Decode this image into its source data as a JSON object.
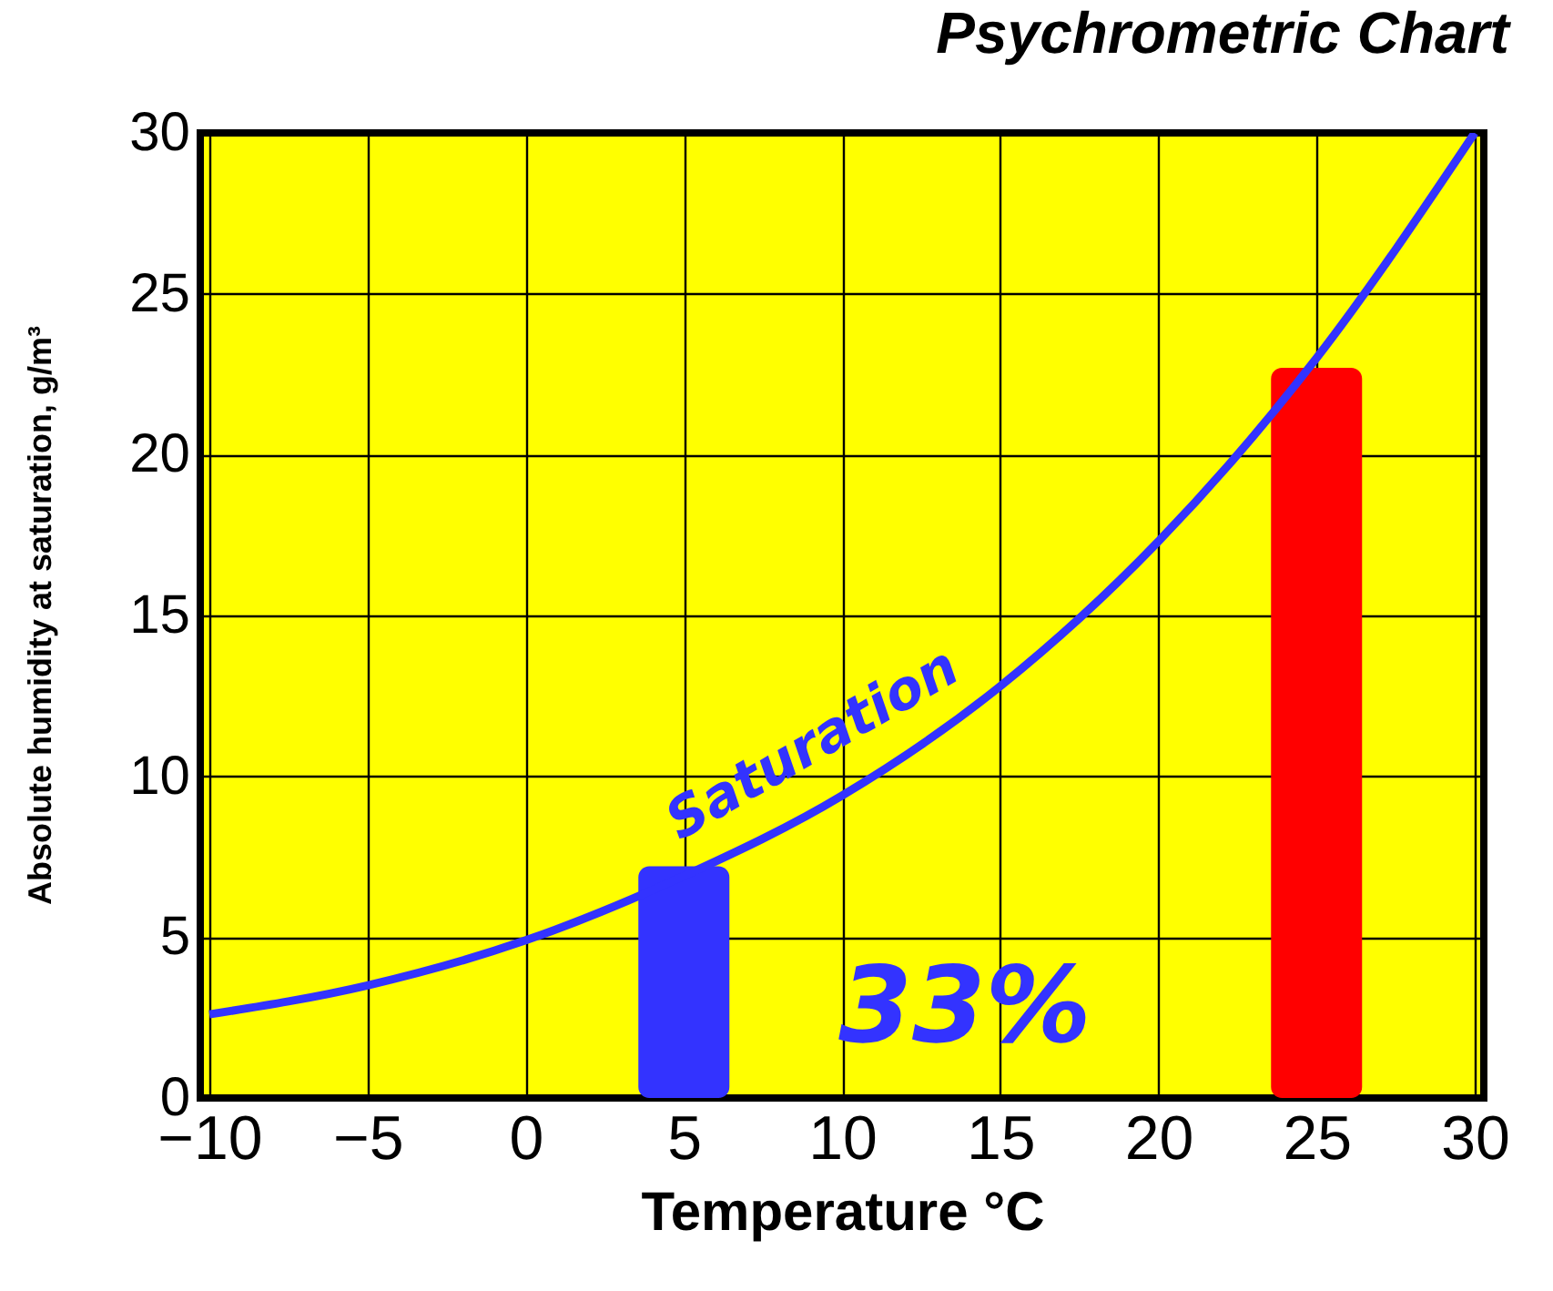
{
  "chart_data": {
    "type": "line",
    "title": "Psychrometric Chart",
    "xlabel": "Temperature °C",
    "ylabel": "Absolute humidity at saturation, g/m³",
    "xlim": [
      -10,
      30
    ],
    "xticks": [
      -10,
      -5,
      0,
      5,
      10,
      15,
      20,
      25,
      30
    ],
    "ylim": [
      0,
      30
    ],
    "yticks": [
      0,
      5,
      10,
      15,
      20,
      25,
      30
    ],
    "grid": true,
    "series": [
      {
        "name": "Saturation",
        "color": "#3333ff",
        "x": [
          -10,
          -5,
          0,
          5,
          10,
          15,
          20,
          25,
          30
        ],
        "values": [
          2.6,
          3.5,
          4.9,
          6.9,
          9.4,
          12.8,
          17.3,
          23,
          30
        ]
      },
      {
        "type": "bar",
        "x": [
          5,
          25
        ],
        "values": [
          7.2,
          22.7
        ],
        "colors": [
          "#3333ff",
          "#ff0000"
        ]
      }
    ],
    "annotations": [
      "33%"
    ]
  }
}
